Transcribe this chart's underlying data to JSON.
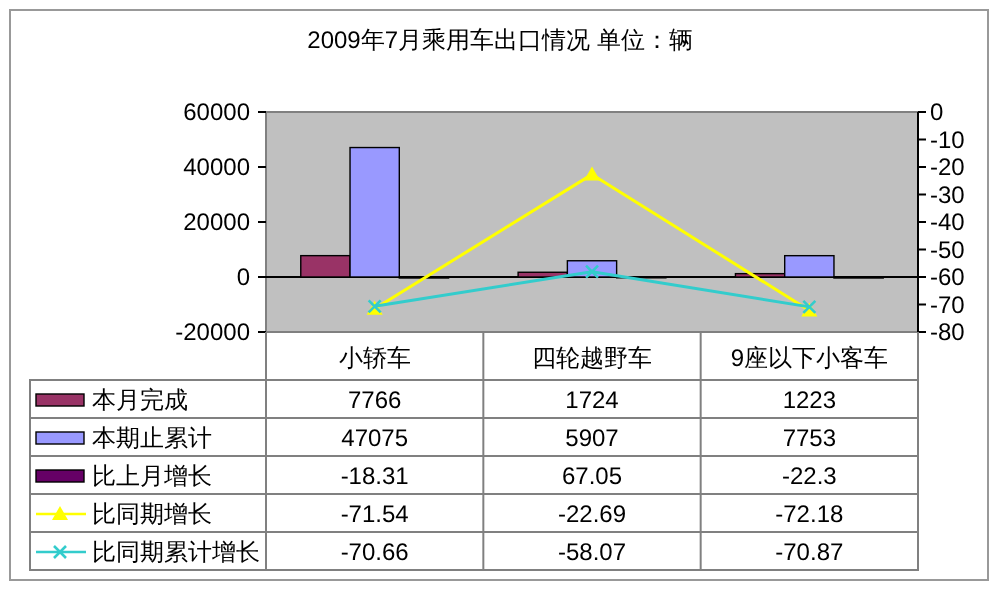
{
  "chart_data": {
    "type": "bar",
    "title": "2009年7月乘用车出口情况 单位：辆",
    "categories": [
      "小轿车",
      "四轮越野车",
      "9座以下小客车"
    ],
    "series": [
      {
        "name": "本月完成",
        "color": "#993366",
        "values": [
          7766,
          1724,
          1223
        ]
      },
      {
        "name": "本期止累计",
        "color": "#9999ff",
        "values": [
          47075,
          5907,
          7753
        ]
      },
      {
        "name": "比上月增长",
        "color": "#660066",
        "values": [
          -18.31,
          67.05,
          -22.3
        ]
      },
      {
        "name": "比同期增长",
        "type": "line",
        "axis": "y2",
        "marker": "triangle",
        "color": "#ffff00",
        "values": [
          -71.54,
          -22.69,
          -72.18
        ]
      },
      {
        "name": "比同期累计增长",
        "type": "line",
        "axis": "y2",
        "marker": "cross",
        "color": "#33cccc",
        "values": [
          -70.66,
          -58.07,
          -70.87
        ]
      }
    ],
    "ylim": [
      -20000,
      60000
    ],
    "yticks": [
      -20000,
      0,
      20000,
      40000,
      60000
    ],
    "y2lim": [
      -80,
      0
    ],
    "y2ticks": [
      -80,
      -70,
      -60,
      -50,
      -40,
      -30,
      -20,
      -10,
      0
    ],
    "data_labels": true,
    "legend": "bottom left"
  }
}
